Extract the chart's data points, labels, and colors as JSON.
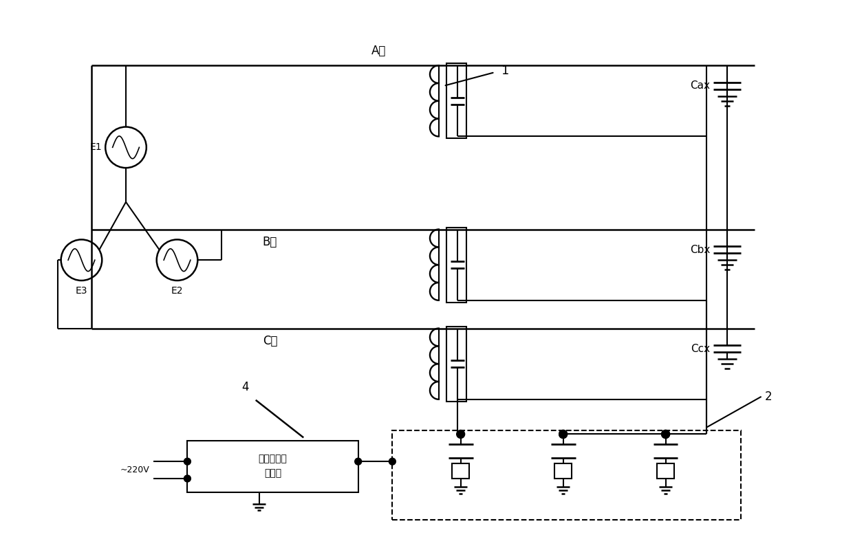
{
  "bg_color": "#ffffff",
  "lc": "#000000",
  "lw": 1.5,
  "fig_w": 12.4,
  "fig_h": 8.13,
  "labels": {
    "A_phase": "A相",
    "B_phase": "B相",
    "C_phase": "C相",
    "E1": "E1",
    "E2": "E2",
    "E3": "E3",
    "Cax": "Cax",
    "Cbx": "Cbx",
    "Ccx": "Ccx",
    "n1": "1",
    "n2": "2",
    "n4": "4",
    "box1": "局部放电检",
    "box2": "测装置",
    "volt": "~220V"
  }
}
